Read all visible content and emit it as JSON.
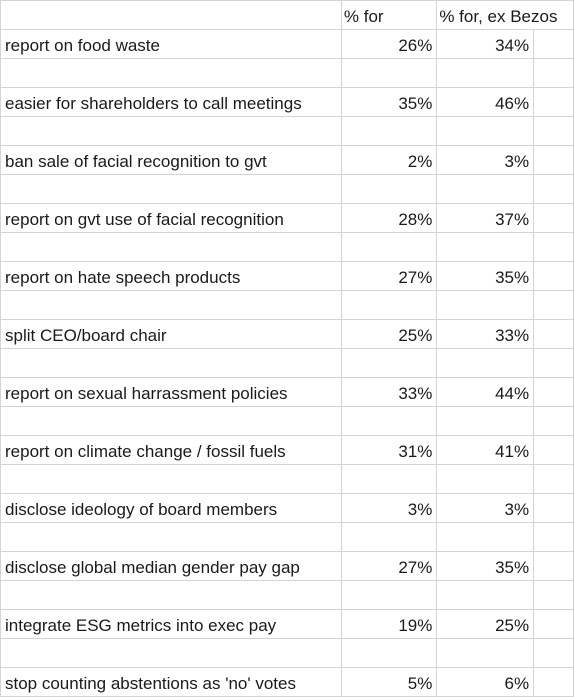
{
  "headers": {
    "col_b": "% for",
    "col_c": "% for, ex Bezos"
  },
  "rows": [
    {
      "label": "report on food waste",
      "pct_for": "26%",
      "pct_ex": "34%"
    },
    {
      "label": "easier for shareholders to call meetings",
      "pct_for": "35%",
      "pct_ex": "46%"
    },
    {
      "label": "ban sale of facial recognition to gvt",
      "pct_for": "2%",
      "pct_ex": "3%"
    },
    {
      "label": "report on gvt use of facial recognition",
      "pct_for": "28%",
      "pct_ex": "37%"
    },
    {
      "label": "report on hate speech products",
      "pct_for": "27%",
      "pct_ex": "35%"
    },
    {
      "label": "split CEO/board chair",
      "pct_for": "25%",
      "pct_ex": "33%"
    },
    {
      "label": "report on sexual harrassment policies",
      "pct_for": "33%",
      "pct_ex": "44%"
    },
    {
      "label": "report on climate change / fossil fuels",
      "pct_for": "31%",
      "pct_ex": "41%"
    },
    {
      "label": "disclose ideology of board members",
      "pct_for": "3%",
      "pct_ex": "3%"
    },
    {
      "label": "disclose global median gender pay gap",
      "pct_for": "27%",
      "pct_ex": "35%"
    },
    {
      "label": "integrate ESG metrics into exec pay",
      "pct_for": "19%",
      "pct_ex": "25%"
    },
    {
      "label": "stop counting abstentions as 'no' votes",
      "pct_for": "5%",
      "pct_ex": "6%"
    }
  ]
}
